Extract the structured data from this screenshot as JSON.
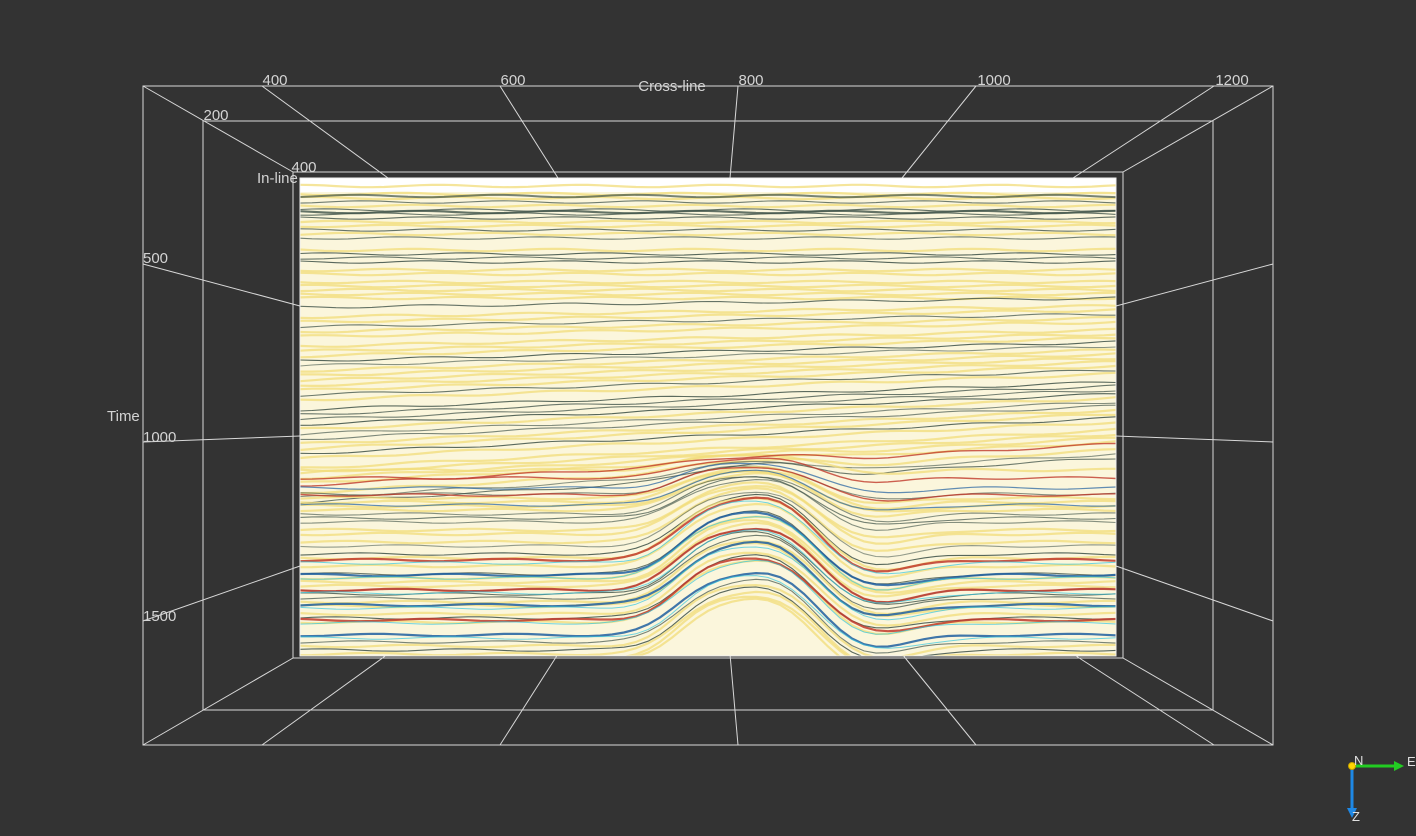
{
  "scene": {
    "background_color": "#333333",
    "grid_line_color": "#d8d8d8",
    "label_color": "#d4d4d4"
  },
  "axes": {
    "crossline": {
      "title": "Cross-line",
      "ticks": [
        {
          "value": 400,
          "label": "400"
        },
        {
          "value": 600,
          "label": "600"
        },
        {
          "value": 800,
          "label": "800"
        },
        {
          "value": 1000,
          "label": "1000"
        },
        {
          "value": 1200,
          "label": "1200"
        }
      ]
    },
    "inline": {
      "title": "In-line",
      "ticks": [
        {
          "value": 200,
          "label": "200"
        },
        {
          "value": 400,
          "label": "400"
        }
      ]
    },
    "time": {
      "title": "Time",
      "ticks": [
        {
          "value": 500,
          "label": "500"
        },
        {
          "value": 1000,
          "label": "1000"
        },
        {
          "value": 1500,
          "label": "1500"
        }
      ]
    }
  },
  "orientation_gizmo": {
    "north_label": "N",
    "east_label": "E",
    "down_label": "Z",
    "north_color": "#ffd400",
    "east_color": "#22cc22",
    "down_color": "#1e88e5"
  },
  "seismic_section": {
    "colors": {
      "background": "#fbf6dc",
      "yellow": "#f1dc7a",
      "dark": "#3f5248",
      "red": "#c0392b",
      "blue": "#1f5fa0",
      "cyan": "#35c6e0"
    }
  }
}
